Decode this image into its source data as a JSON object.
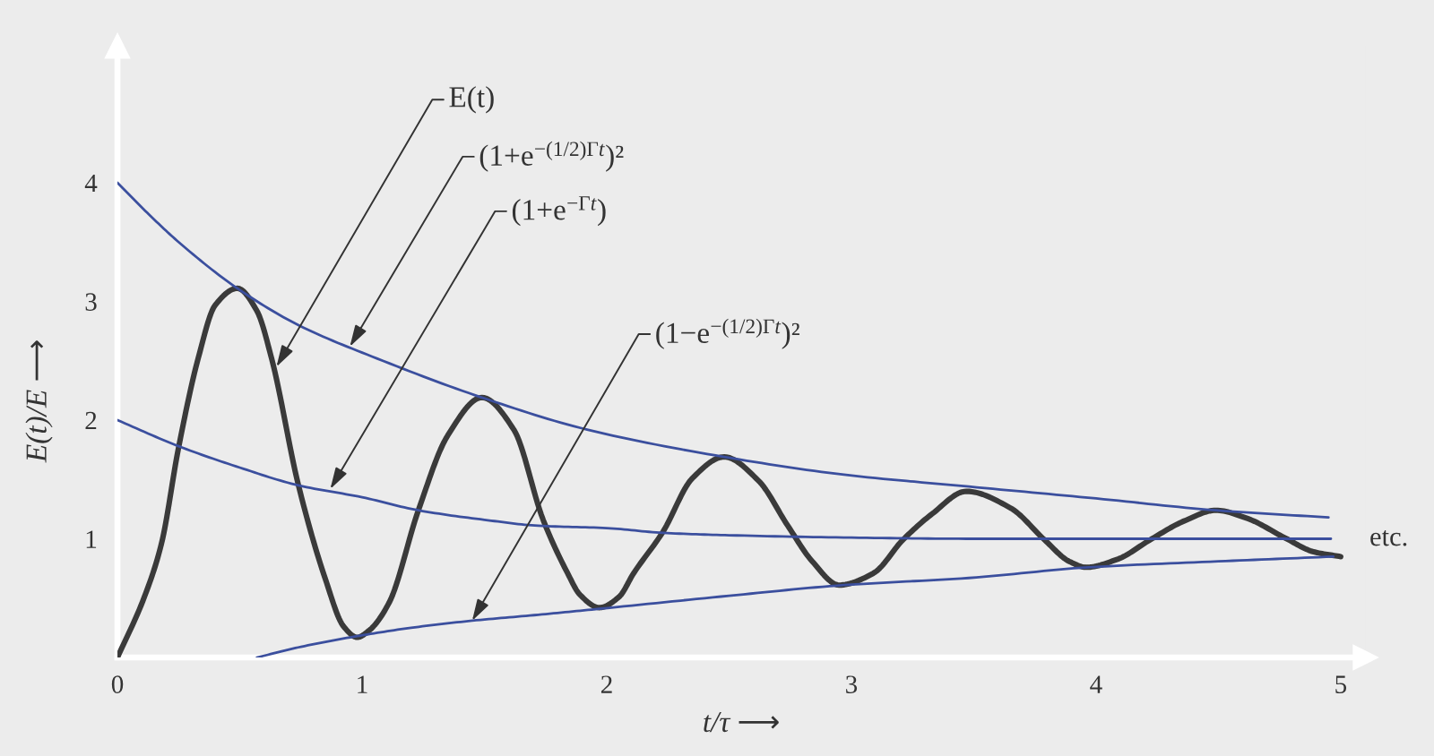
{
  "chart_data": {
    "type": "line",
    "xlabel": "t/τ ⟶",
    "ylabel": "E(t)/E ⟶",
    "xlim": [
      0,
      5.1
    ],
    "ylim": [
      0,
      5.15
    ],
    "xticks": [
      0,
      1,
      2,
      3,
      4,
      5
    ],
    "yticks": [
      1,
      2,
      3,
      4
    ],
    "series": [
      {
        "color": "#3a3a3a",
        "x": [
          0,
          0.11,
          0.18,
          0.25,
          0.33,
          0.4,
          0.49,
          0.57,
          0.63,
          0.74,
          0.85,
          0.925,
          0.98,
          1.03,
          1.11,
          1.23,
          1.35,
          1.49,
          1.62,
          1.74,
          1.84,
          1.89,
          1.97,
          2.05,
          2.11,
          2.23,
          2.35,
          2.48,
          2.62,
          2.74,
          2.84,
          2.95,
          3.09,
          3.21,
          3.33,
          3.47,
          3.65,
          3.79,
          3.89,
          3.96,
          4.09,
          4.22,
          4.36,
          4.49,
          4.62,
          4.77,
          4.89,
          5.0
        ],
        "values": [
          0,
          0.51,
          0.96,
          1.77,
          2.52,
          2.97,
          3.11,
          2.92,
          2.52,
          1.45,
          0.66,
          0.26,
          0.17,
          0.23,
          0.46,
          1.24,
          1.87,
          2.19,
          1.92,
          1.16,
          0.71,
          0.53,
          0.42,
          0.51,
          0.71,
          1.06,
          1.51,
          1.69,
          1.49,
          1.11,
          0.81,
          0.61,
          0.71,
          0.99,
          1.21,
          1.4,
          1.26,
          0.99,
          0.81,
          0.76,
          0.83,
          0.99,
          1.15,
          1.24,
          1.17,
          1.01,
          0.89,
          0.85
        ]
      },
      {
        "color": "#3b4f9e",
        "x": [
          0,
          0.13,
          0.25,
          0.49,
          0.74,
          1.06,
          1.49,
          1.92,
          2.48,
          2.97,
          3.48,
          4.0,
          4.49,
          4.95
        ],
        "values": [
          4.0,
          3.73,
          3.5,
          3.11,
          2.8,
          2.52,
          2.19,
          1.92,
          1.69,
          1.54,
          1.44,
          1.34,
          1.24,
          1.18
        ]
      },
      {
        "color": "#3b4f9e",
        "x": [
          0,
          0.25,
          0.5,
          0.74,
          1.0,
          1.23,
          1.5,
          1.72,
          2.0,
          2.23,
          2.5,
          3.0,
          3.5,
          4.0,
          4.5,
          4.96
        ],
        "values": [
          2.0,
          1.78,
          1.6,
          1.45,
          1.35,
          1.24,
          1.16,
          1.11,
          1.09,
          1.05,
          1.03,
          1.01,
          1.0,
          1.0,
          1.0,
          1.0
        ]
      },
      {
        "color": "#3b4f9e",
        "x": [
          0.57,
          0.75,
          0.98,
          1.2,
          1.45,
          1.72,
          1.97,
          2.5,
          2.97,
          3.48,
          3.97,
          4.5,
          4.97
        ],
        "values": [
          0,
          0.09,
          0.18,
          0.25,
          0.31,
          0.36,
          0.41,
          0.52,
          0.61,
          0.67,
          0.76,
          0.81,
          0.85
        ]
      }
    ],
    "annotations": [
      {
        "text": "E(t)",
        "x": 0.65,
        "y": 2.45
      },
      {
        "text": "(1+e$^{−(1/2)Γt}$)²",
        "x": 0.95,
        "y": 2.62
      },
      {
        "text": "(1+e$^{−Γt}$)",
        "x": 0.87,
        "y": 1.42
      },
      {
        "text": "(1−e$^{−(1/2)Γt}$)²",
        "x": 1.45,
        "y": 0.31
      },
      "etc."
    ]
  }
}
